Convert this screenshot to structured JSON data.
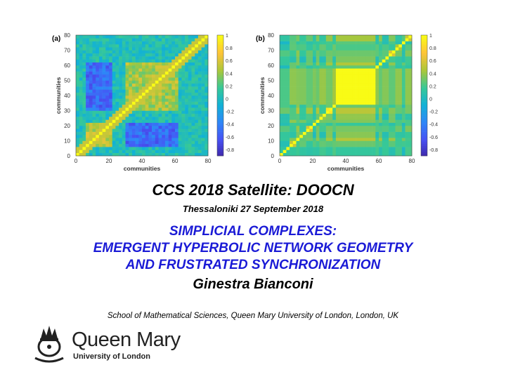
{
  "chart_data": [
    {
      "type": "heatmap",
      "panel_label": "(a)",
      "xlabel": "communities",
      "ylabel": "communities",
      "xlim": [
        0,
        80
      ],
      "ylim": [
        0,
        80
      ],
      "xticks": [
        0,
        20,
        40,
        60,
        80
      ],
      "yticks": [
        0,
        10,
        20,
        30,
        40,
        50,
        60,
        70,
        80
      ],
      "colorbar_ticks": [
        "1",
        "0.8",
        "0.6",
        "0.4",
        "0.2",
        "0",
        "-0.2",
        "-0.4",
        "-0.6",
        "-0.8"
      ],
      "clim": [
        -0.9,
        1
      ],
      "colormap": "parula",
      "description_values": {
        "diagonal": 1,
        "block_30_60": 0.45,
        "block_5_20": -0.55,
        "background": 0.05
      }
    },
    {
      "type": "heatmap",
      "panel_label": "(b)",
      "xlabel": "communities",
      "ylabel": "communities",
      "xlim": [
        0,
        80
      ],
      "ylim": [
        0,
        80
      ],
      "xticks": [
        0,
        20,
        40,
        60,
        80
      ],
      "yticks": [
        0,
        10,
        20,
        30,
        40,
        50,
        60,
        70,
        80
      ],
      "colorbar_ticks": [
        "1",
        "0.8",
        "0.6",
        "0.4",
        "0.2",
        "0",
        "-0.2",
        "-0.4",
        "-0.6",
        "-0.8"
      ],
      "clim": [
        -0.9,
        1
      ],
      "colormap": "parula",
      "description_values": {
        "diagonal": 1,
        "block_35_58": 1,
        "background": 0.15
      }
    }
  ],
  "colors": {
    "title_blue": "#1a1ad6",
    "text": "#000000"
  },
  "slide": {
    "conference": "CCS 2018 Satellite: DOOCN",
    "date_place": "Thessaloniki 27 September 2018",
    "talk_title_lines": [
      "SIMPLICIAL COMPLEXES:",
      "EMERGENT HYPERBOLIC NETWORK GEOMETRY",
      "AND FRUSTRATED SYNCHRONIZATION"
    ],
    "author": "Ginestra Bianconi",
    "affiliation": "School of Mathematical Sciences, Queen Mary University of London, London, UK"
  },
  "logo": {
    "name": "Queen Mary",
    "sub": "University of London",
    "icon": "crown-emblem-icon"
  }
}
